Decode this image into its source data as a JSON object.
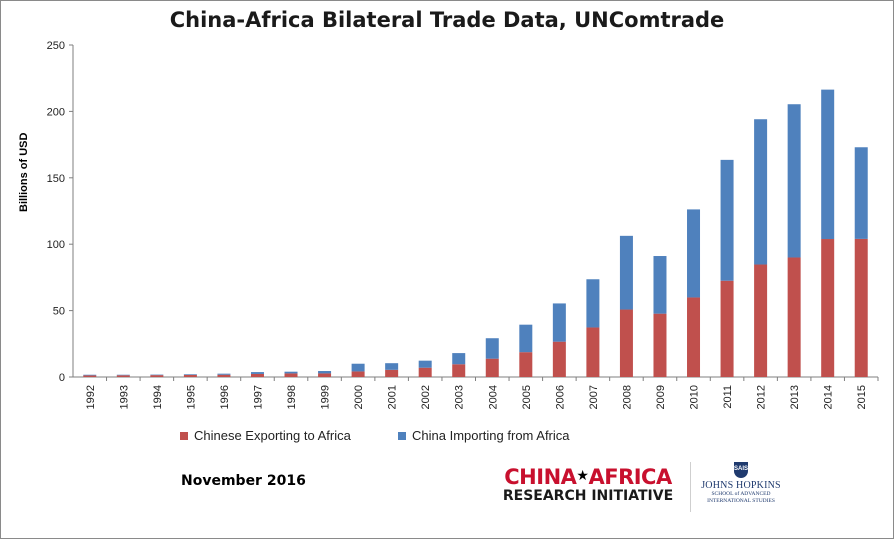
{
  "chart_data": {
    "type": "bar",
    "stacked": true,
    "title": "China-Africa Bilateral Trade Data, UNComtrade",
    "xlabel": "",
    "ylabel": "Billions of USD",
    "ylim": [
      0,
      250
    ],
    "yticks": [
      0,
      50,
      100,
      150,
      200,
      250
    ],
    "grid": false,
    "legend_position": "bottom",
    "categories": [
      "1992",
      "1993",
      "1994",
      "1995",
      "1996",
      "1997",
      "1998",
      "1999",
      "2000",
      "2001",
      "2002",
      "2003",
      "2004",
      "2005",
      "2006",
      "2007",
      "2008",
      "2009",
      "2010",
      "2011",
      "2012",
      "2013",
      "2014",
      "2015"
    ],
    "series": [
      {
        "name": "Chinese Exporting to Africa",
        "color": "#c0504d",
        "values": [
          1.2,
          1.3,
          1.4,
          1.6,
          1.7,
          2.3,
          2.7,
          2.7,
          4.2,
          5.4,
          7.0,
          9.6,
          13.8,
          18.7,
          26.6,
          37.3,
          50.8,
          47.7,
          59.9,
          72.5,
          84.7,
          90.0,
          103.9,
          104.0
        ]
      },
      {
        "name": "China Importing from Africa",
        "color": "#4f81bd",
        "values": [
          0.5,
          0.4,
          0.4,
          0.5,
          0.8,
          1.4,
          1.3,
          1.8,
          5.8,
          5.0,
          5.3,
          8.4,
          15.4,
          20.7,
          28.8,
          36.3,
          55.5,
          43.4,
          66.3,
          91.0,
          109.4,
          115.4,
          112.5,
          69.0
        ]
      }
    ]
  },
  "footer": {
    "date": "November 2016",
    "logo_line1_a": "CHINA",
    "logo_star": "★",
    "logo_line1_b": "AFRICA",
    "logo_line2": "RESEARCH INITIATIVE",
    "jhu_shield": "SAIS",
    "jhu_name": "JOHNS HOPKINS",
    "jhu_sub1": "SCHOOL of ADVANCED",
    "jhu_sub2": "INTERNATIONAL STUDIES"
  }
}
